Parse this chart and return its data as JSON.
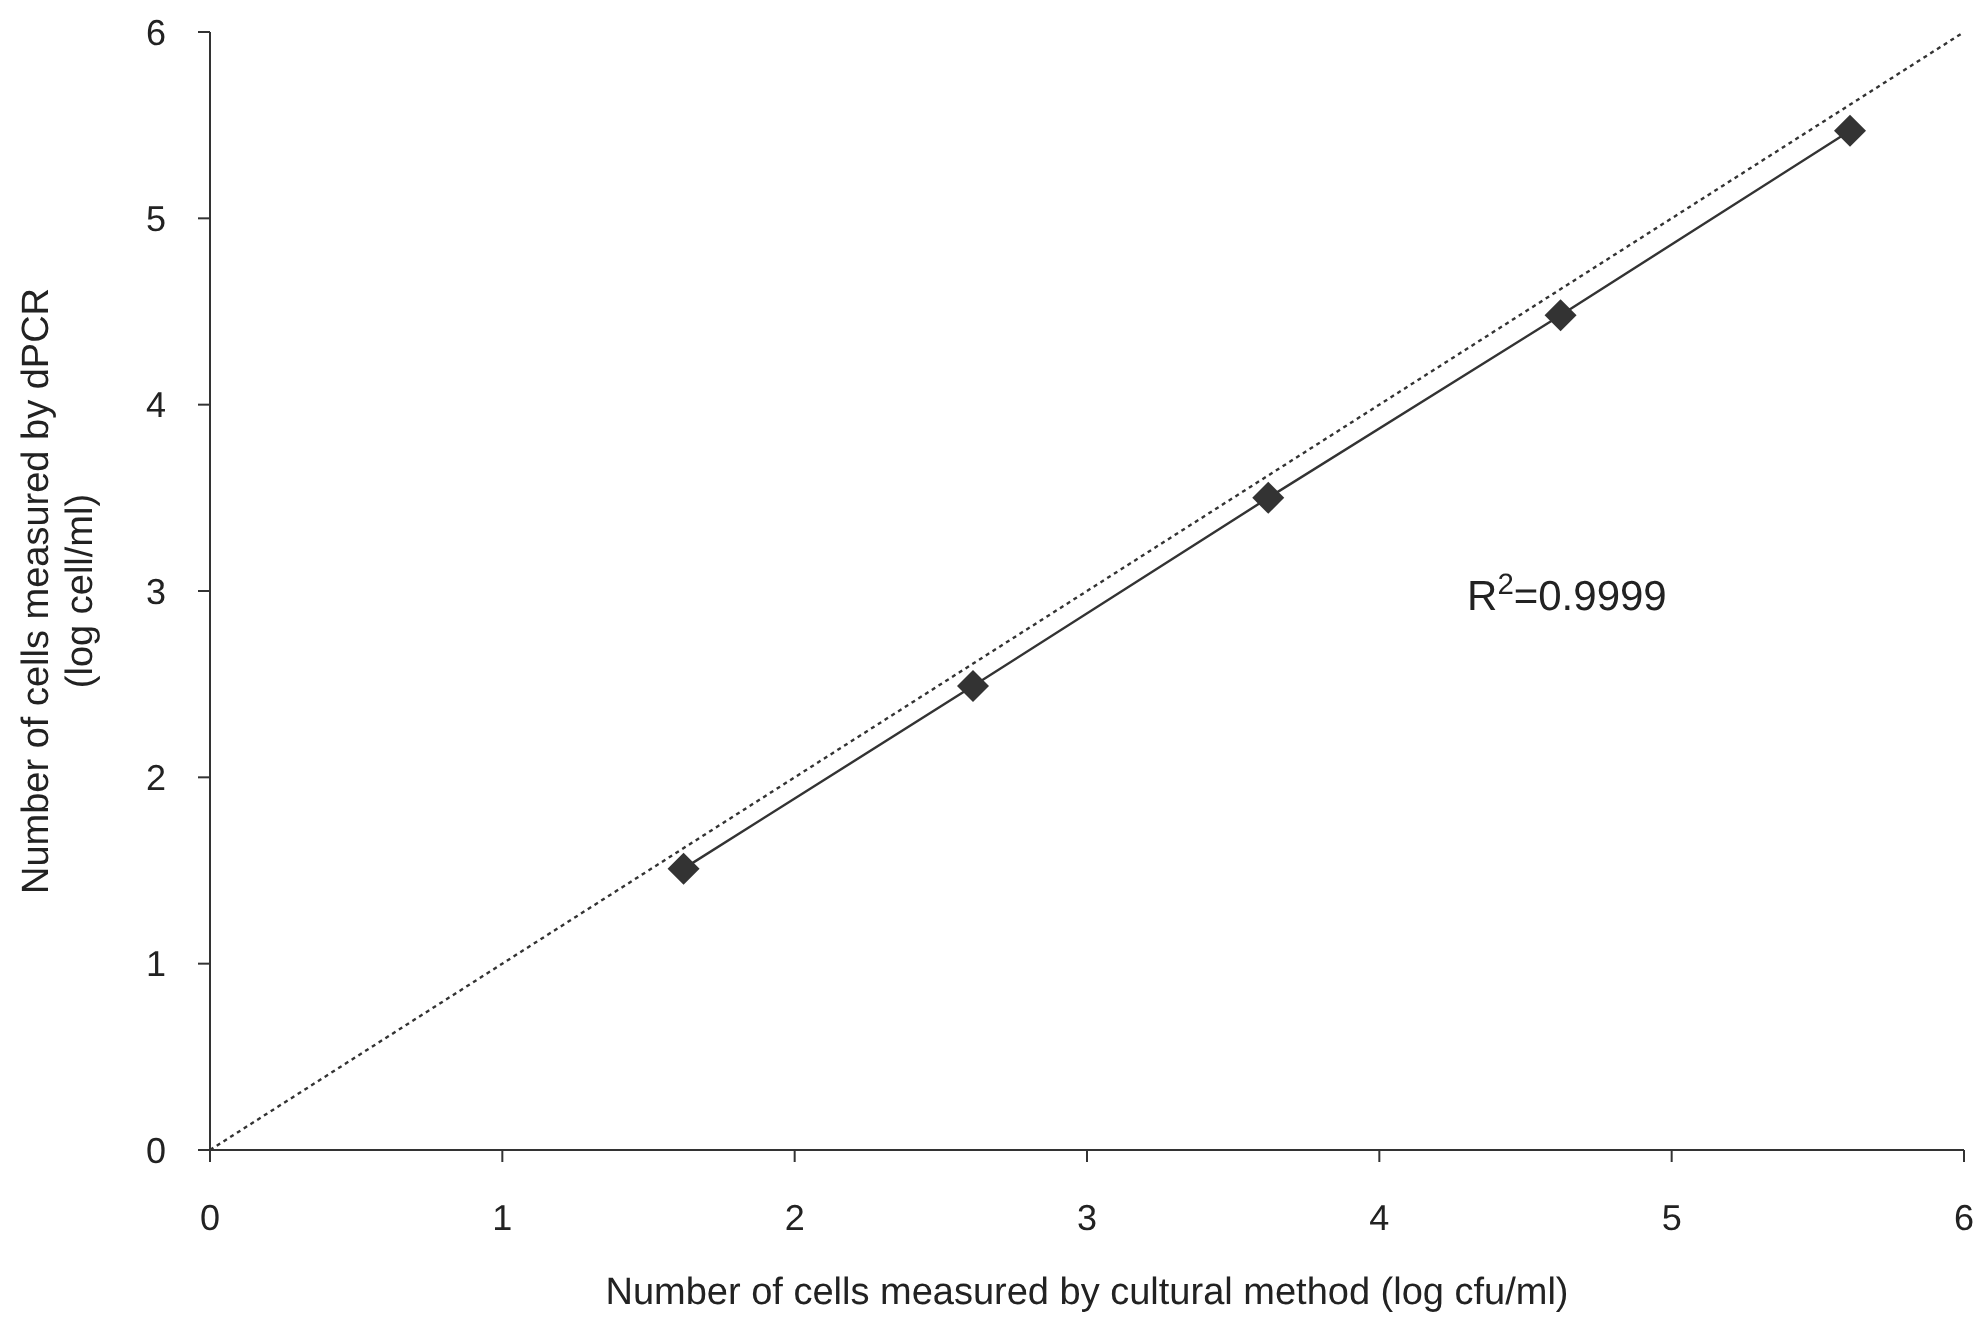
{
  "chart_data": {
    "type": "line",
    "xlabel": "Number of cells measured by cultural method (log cfu/ml)",
    "ylabel": "Number of cells measured by dPCR\n(log cell/ml)",
    "xlim": [
      0,
      6
    ],
    "ylim": [
      0,
      6
    ],
    "xticks": [
      0,
      1,
      2,
      3,
      4,
      5,
      6
    ],
    "yticks": [
      0,
      1,
      2,
      3,
      4,
      5,
      6
    ],
    "grid": false,
    "series": [
      {
        "color": "#333333",
        "marker": "diamond",
        "line_style": "solid",
        "x": [
          1.62,
          2.61,
          3.62,
          4.62,
          5.61
        ],
        "values": [
          1.51,
          2.49,
          3.5,
          4.48,
          5.47
        ]
      },
      {
        "color": "#333333",
        "marker": "none",
        "line_style": "dotted",
        "x": [
          0,
          6
        ],
        "values": [
          0,
          6
        ]
      }
    ],
    "annotations": [
      "R$^{2}$=0.9999"
    ]
  }
}
